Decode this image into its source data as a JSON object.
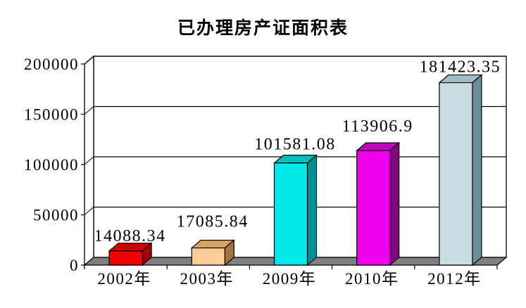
{
  "chart_data": {
    "type": "bar",
    "style": "3d",
    "title": "已办理房产证面积表",
    "categories": [
      "2002年",
      "2003年",
      "2009年",
      "2010年",
      "2012年"
    ],
    "values": [
      14088.34,
      17085.84,
      101581.08,
      113906.9,
      181423.35
    ],
    "value_labels": [
      "14088.34",
      "17085.84",
      "101581.08",
      "113906.9",
      "181423.35"
    ],
    "xlabel": "",
    "ylabel": "",
    "y_ticks": [
      0,
      50000,
      100000,
      150000,
      200000
    ],
    "y_tick_labels": [
      "0",
      "50000",
      "100000",
      "150000",
      "200000"
    ],
    "ylim": [
      0,
      200000
    ],
    "grid": true,
    "legend": false,
    "colors": {
      "bars": [
        {
          "front": "#EE0000",
          "top": "#D00000",
          "side": "#A00000"
        },
        {
          "front": "#FFCC99",
          "top": "#D8A263",
          "side": "#A3743B"
        },
        {
          "front": "#00E8E8",
          "top": "#00BEBE",
          "side": "#009292"
        },
        {
          "front": "#EE00EE",
          "top": "#BC00BC",
          "side": "#860086"
        },
        {
          "front": "#C9DEE2",
          "top": "#A2BEC4",
          "side": "#6F8D94"
        }
      ],
      "floor": "#808080",
      "wall": "#FFFFFF",
      "line": "#000000",
      "text": "#000000",
      "background": "#FFFFFF"
    }
  }
}
